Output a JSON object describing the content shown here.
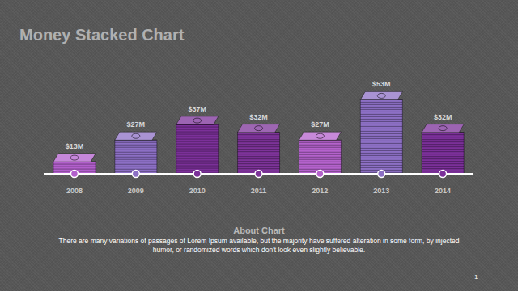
{
  "chart_data": {
    "type": "bar",
    "title": "Money Stacked Chart",
    "categories": [
      "2008",
      "2009",
      "2010",
      "2011",
      "2012",
      "2013",
      "2014"
    ],
    "values": [
      13,
      27,
      37,
      32,
      27,
      53,
      32
    ],
    "value_labels": [
      "$13M",
      "$27M",
      "$37M",
      "$32M",
      "$27M",
      "$53M",
      "$32M"
    ],
    "colors": [
      "#b25fcc",
      "#8c6fc4",
      "#7b3099",
      "#7d3399",
      "#b462cc",
      "#8c6fc4",
      "#7b3099"
    ],
    "ylim": [
      0,
      60
    ],
    "grid": false,
    "data_labels": true,
    "tick_labels": "x",
    "annotations": [
      "About Chart",
      "There are many variations of passages of Lorem Ipsum available, but the majority have suffered alteration in some form, by injected humor, or randomized words which don't look even slightly believable.",
      "1"
    ]
  }
}
